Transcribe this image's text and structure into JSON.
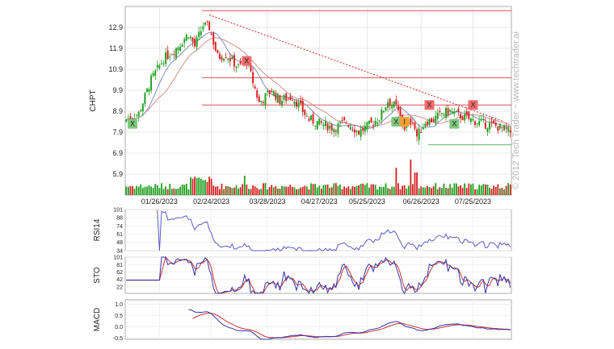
{
  "chart_data": [
    {
      "type": "candlestick",
      "ylabel": "CHPT",
      "y_ticks": [
        "5.9",
        "6.9",
        "7.9",
        "8.9",
        "9.9",
        "10.9",
        "11.9",
        "12.9"
      ],
      "y_tick_values": [
        5.9,
        6.9,
        7.9,
        8.9,
        9.9,
        10.9,
        11.9,
        12.9
      ],
      "ylim": [
        4.9,
        13.9
      ],
      "x_ticks": [
        "01/26/2023",
        "02/24/2023",
        "03/28/2023",
        "04/27/2023",
        "05/25/2023",
        "06/26/2023",
        "07/25/2023"
      ],
      "x_tick_index": [
        16,
        41,
        68,
        93,
        116,
        142,
        167
      ],
      "watermark": "© 2012 Tech Trader ~ www.techtrader.ai",
      "signals": [
        {
          "label": "X",
          "color": "#7ec87e",
          "index": 3,
          "price": 8.3
        },
        {
          "label": "X",
          "color": "#f26b6b",
          "index": 58,
          "price": 11.3
        },
        {
          "label": "X",
          "color": "#7ec87e",
          "index": 130,
          "price": 8.4
        },
        {
          "label": "I",
          "color": "#f0a030",
          "index": 134,
          "price": 8.4
        },
        {
          "label": "X",
          "color": "#f26b6b",
          "index": 146,
          "price": 9.2
        },
        {
          "label": "X",
          "color": "#7ec87e",
          "index": 158,
          "price": 8.3
        },
        {
          "label": "X",
          "color": "#f26b6b",
          "index": 167,
          "price": 9.2
        }
      ],
      "resistance_levels": [
        13.7,
        10.5,
        9.2
      ],
      "support_levels": [
        7.3
      ],
      "trendline": {
        "from": {
          "index": 40,
          "price": 13.5
        },
        "to": {
          "index": 182,
          "price": 8.4
        }
      },
      "colors": {
        "up": "#1e9e1e",
        "down": "#d62020",
        "ma_fast": "#7f8fb8",
        "ma_slow": "#d88c8c",
        "line": "#d62020"
      }
    },
    {
      "type": "line",
      "ylabel": "RSI14",
      "y_ticks": [
        "34",
        "48",
        "61",
        "74",
        "88",
        "101"
      ],
      "y_tick_values": [
        34,
        48,
        61,
        74,
        88,
        101
      ],
      "ylim": [
        34,
        101
      ]
    },
    {
      "type": "line",
      "ylabel": "STO",
      "y_ticks": [
        "22",
        "42",
        "62",
        "81",
        "101"
      ],
      "y_tick_values": [
        22,
        42,
        62,
        81,
        101
      ],
      "ylim": [
        5,
        101
      ]
    },
    {
      "type": "line",
      "ylabel": "MACD",
      "y_ticks": [
        "-0.5",
        "0.0",
        "0.5",
        "1.0"
      ],
      "y_tick_values": [
        -0.5,
        0.0,
        0.5,
        1.0
      ],
      "ylim": [
        -0.55,
        1.2
      ]
    }
  ]
}
